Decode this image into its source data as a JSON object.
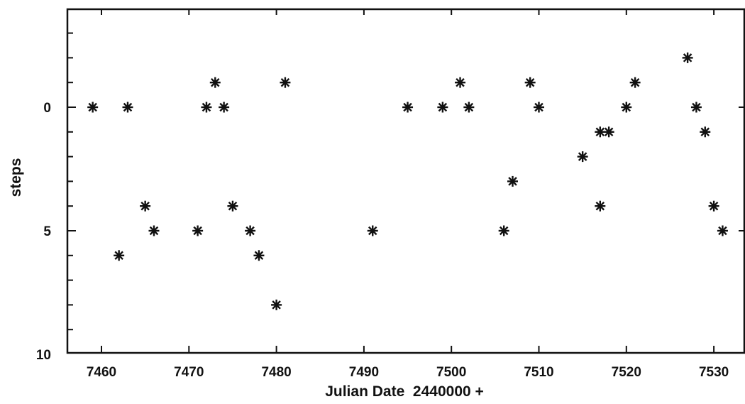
{
  "chart_data": {
    "type": "scatter",
    "xlabel": "Julian Date  2440000 +",
    "ylabel": "steps",
    "xlim": [
      7455,
      7535
    ],
    "ylim": [
      10,
      -4
    ],
    "y_inverted": true,
    "grid": false,
    "x_ticks": [
      7460,
      7470,
      7480,
      7490,
      7500,
      7510,
      7520,
      7530
    ],
    "y_ticks": [
      0,
      5,
      10
    ],
    "marker": "asterisk",
    "points": [
      {
        "x": 7459,
        "y": 0
      },
      {
        "x": 7462,
        "y": 6
      },
      {
        "x": 7463,
        "y": 0
      },
      {
        "x": 7465,
        "y": 4
      },
      {
        "x": 7466,
        "y": 5
      },
      {
        "x": 7471,
        "y": 5
      },
      {
        "x": 7472,
        "y": 0
      },
      {
        "x": 7473,
        "y": -1
      },
      {
        "x": 7474,
        "y": 0
      },
      {
        "x": 7475,
        "y": 4
      },
      {
        "x": 7477,
        "y": 5
      },
      {
        "x": 7478,
        "y": 6
      },
      {
        "x": 7480,
        "y": 8
      },
      {
        "x": 7481,
        "y": -1
      },
      {
        "x": 7491,
        "y": 5
      },
      {
        "x": 7495,
        "y": 0
      },
      {
        "x": 7499,
        "y": 0
      },
      {
        "x": 7501,
        "y": -1
      },
      {
        "x": 7502,
        "y": 0
      },
      {
        "x": 7506,
        "y": 5
      },
      {
        "x": 7507,
        "y": 3
      },
      {
        "x": 7509,
        "y": -1
      },
      {
        "x": 7510,
        "y": 0
      },
      {
        "x": 7515,
        "y": 2
      },
      {
        "x": 7517,
        "y": 1
      },
      {
        "x": 7517,
        "y": 4
      },
      {
        "x": 7518,
        "y": 1
      },
      {
        "x": 7520,
        "y": 0
      },
      {
        "x": 7521,
        "y": -1
      },
      {
        "x": 7527,
        "y": -2
      },
      {
        "x": 7528,
        "y": 0
      },
      {
        "x": 7529,
        "y": 1
      },
      {
        "x": 7530,
        "y": 4
      },
      {
        "x": 7531,
        "y": 5
      }
    ]
  }
}
